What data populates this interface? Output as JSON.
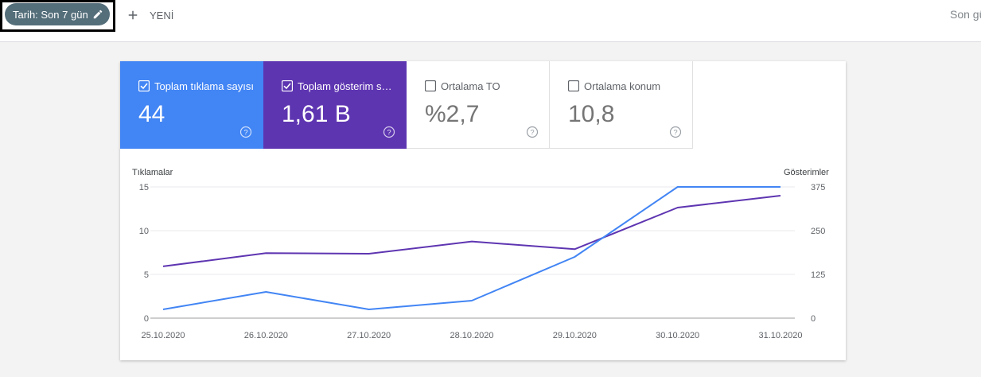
{
  "toolbar": {
    "date_chip_label": "Tarih: Son 7 gün",
    "new_label": "YENİ",
    "right_link": "Son gü"
  },
  "metrics": [
    {
      "label": "Toplam tıklama sayısı",
      "value": "44",
      "checked": true,
      "color": "#4285f4"
    },
    {
      "label": "Toplam gösterim sayısı",
      "value": "1,61 B",
      "checked": true,
      "color": "#5e35b1"
    },
    {
      "label": "Ortalama TO",
      "value": "%2,7",
      "checked": false
    },
    {
      "label": "Ortalama konum",
      "value": "10,8",
      "checked": false
    }
  ],
  "chart": {
    "left_axis_title": "Tıklamalar",
    "right_axis_title": "Gösterimler"
  },
  "chart_data": {
    "type": "line",
    "x": [
      "25.10.2020",
      "26.10.2020",
      "27.10.2020",
      "28.10.2020",
      "29.10.2020",
      "30.10.2020",
      "31.10.2020"
    ],
    "left_ticks": [
      "15",
      "10",
      "5",
      "0"
    ],
    "right_ticks": [
      "375",
      "250",
      "125",
      "0"
    ],
    "ylim_left": [
      0,
      15
    ],
    "ylim_right": [
      0,
      375
    ],
    "grid": true,
    "series": [
      {
        "name": "Tıklamalar",
        "axis": "left",
        "color": "#4285f4",
        "values": [
          1,
          3,
          1,
          2,
          7,
          15,
          15
        ]
      },
      {
        "name": "Gösterimler",
        "axis": "right",
        "color": "#5e35b1",
        "values": [
          148,
          186,
          184,
          219,
          197,
          316,
          350
        ]
      }
    ]
  }
}
